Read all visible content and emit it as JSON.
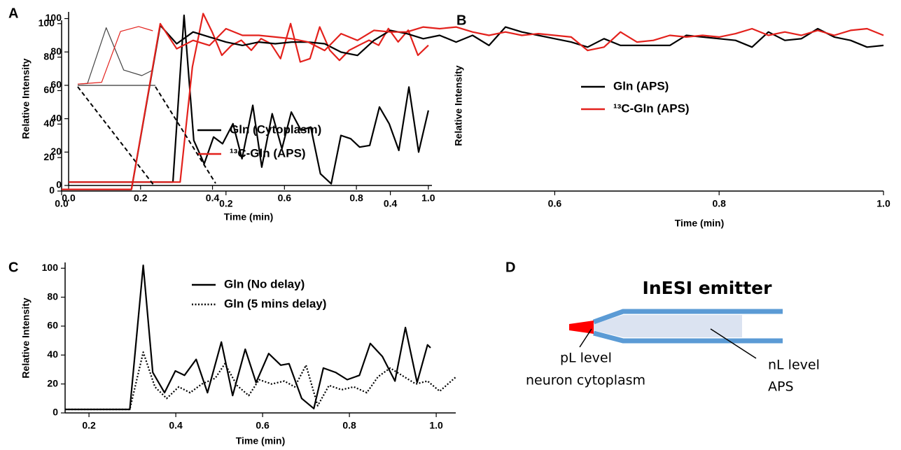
{
  "chart_data": [
    {
      "type": "line",
      "panel": "A",
      "xlabel": "Time (min)",
      "ylabel": "Relative Intensity",
      "xlim": [
        0,
        1.01
      ],
      "ylim": [
        0,
        104
      ],
      "xticks": [
        {
          "value": 0,
          "label": "0.0"
        },
        0.2,
        0.4,
        0.6,
        0.8,
        {
          "value": 1,
          "label": "1.0"
        }
      ],
      "yticks": [
        0,
        20,
        40,
        60,
        80,
        100
      ],
      "series": [
        {
          "name": "Gln (Cytoplasm)",
          "color": "#000000",
          "x": [
            0,
            0.29,
            0.321,
            0.348,
            0.377,
            0.403,
            0.428,
            0.457,
            0.482,
            0.512,
            0.537,
            0.566,
            0.593,
            0.619,
            0.646,
            0.673,
            0.7,
            0.73,
            0.757,
            0.784,
            0.809,
            0.837,
            0.864,
            0.891,
            0.918,
            0.946,
            0.973,
            1.0
          ],
          "values": [
            2,
            2,
            102,
            27,
            13,
            29,
            25,
            37,
            16,
            48,
            11,
            43,
            22,
            44,
            33,
            35,
            7,
            1,
            30,
            28,
            23,
            24,
            47,
            37,
            21,
            59,
            20,
            45
          ]
        },
        {
          "name": "¹³C-Gln (APS)",
          "color": "#e3211c",
          "x": [
            0,
            0.31,
            0.344,
            0.374,
            0.399,
            0.426,
            0.453,
            0.48,
            0.508,
            0.535,
            0.562,
            0.589,
            0.617,
            0.644,
            0.671,
            0.698,
            0.726,
            0.753,
            0.78,
            0.807,
            0.835,
            0.862,
            0.889,
            0.916,
            0.944,
            0.971,
            1.0
          ],
          "values": [
            2,
            2,
            71,
            103,
            92,
            78,
            84,
            87,
            81,
            88,
            85,
            76,
            97,
            74,
            76,
            95,
            81,
            75,
            81,
            84,
            87,
            84,
            94,
            86,
            93,
            78,
            84
          ]
        }
      ],
      "inset": {
        "xlim": [
          0.3,
          0.42
        ],
        "ylim": [
          0,
          105
        ],
        "series": [
          {
            "color": "#444444",
            "x": [
              0.3,
              0.315,
              0.344,
              0.371,
              0.399,
              0.416
            ],
            "values": [
              2,
              3,
              94,
              25,
              16,
              25
            ]
          },
          {
            "color": "#e3211c",
            "x": [
              0.3,
              0.337,
              0.366,
              0.394,
              0.416
            ],
            "values": [
              2,
              5,
              88,
              96,
              89
            ]
          }
        ]
      }
    },
    {
      "type": "line",
      "panel": "B",
      "xlabel": "Time (min)",
      "ylabel": "Relative Intensity",
      "xlim": [
        0,
        1.0
      ],
      "ylim": [
        0,
        102
      ],
      "xticks": [
        {
          "value": 0,
          "label": "0.0"
        },
        0.2,
        0.4,
        0.6,
        0.8,
        {
          "value": 1,
          "label": "1.0"
        }
      ],
      "yticks": [
        0,
        20,
        40,
        60,
        80,
        100
      ],
      "x": [
        0,
        0.085,
        0.12,
        0.14,
        0.16,
        0.18,
        0.2,
        0.22,
        0.24,
        0.26,
        0.28,
        0.3,
        0.32,
        0.34,
        0.36,
        0.38,
        0.4,
        0.42,
        0.44,
        0.46,
        0.48,
        0.5,
        0.52,
        0.54,
        0.56,
        0.58,
        0.6,
        0.62,
        0.64,
        0.66,
        0.68,
        0.7,
        0.72,
        0.74,
        0.76,
        0.78,
        0.8,
        0.82,
        0.84,
        0.86,
        0.88,
        0.9,
        0.92,
        0.94,
        0.96,
        0.98,
        1.0
      ],
      "series": [
        {
          "name": "Gln (APS)",
          "color": "#000000",
          "values": [
            1,
            1,
            99,
            88,
            95,
            92,
            89,
            87,
            89,
            88,
            89,
            89,
            88,
            83,
            81,
            90,
            96,
            94,
            91,
            93,
            89,
            93,
            87,
            98,
            95,
            93,
            91,
            89,
            86,
            91,
            87,
            87,
            87,
            87,
            93,
            92,
            91,
            90,
            86,
            95,
            90,
            91,
            97,
            92,
            90,
            86,
            87
          ]
        },
        {
          "name": "¹³C-Gln (APS)",
          "color": "#e3211c",
          "values": [
            1,
            1,
            100,
            85,
            90,
            87,
            97,
            93,
            93,
            92,
            91,
            89,
            84,
            94,
            90,
            96,
            95,
            95,
            98,
            97,
            98,
            95,
            93,
            95,
            93,
            94,
            93,
            92,
            84,
            86,
            95,
            89,
            90,
            93,
            92,
            93,
            92,
            94,
            97,
            93,
            95,
            93,
            96,
            93,
            96,
            97,
            93
          ]
        }
      ]
    },
    {
      "type": "line",
      "panel": "C",
      "xlabel": "Time (min)",
      "ylabel": "Relative Intensity",
      "xlim": [
        0.145,
        1.045
      ],
      "ylim": [
        0,
        104
      ],
      "xticks": [
        0.2,
        0.4,
        0.6,
        0.8,
        {
          "value": 1,
          "label": "1.0"
        }
      ],
      "yticks": [
        0,
        20,
        40,
        60,
        80,
        100
      ],
      "series": [
        {
          "name": "Gln (No delay)",
          "color": "#000000",
          "dotted": false,
          "x": [
            0.145,
            0.294,
            0.325,
            0.347,
            0.374,
            0.399,
            0.42,
            0.447,
            0.473,
            0.505,
            0.531,
            0.56,
            0.585,
            0.614,
            0.642,
            0.661,
            0.69,
            0.718,
            0.74,
            0.768,
            0.795,
            0.823,
            0.848,
            0.876,
            0.905,
            0.929,
            0.956,
            0.98,
            0.987
          ],
          "values": [
            2.4,
            2.4,
            102,
            28,
            14,
            29,
            26,
            37,
            14,
            49,
            12,
            44,
            21,
            41,
            33,
            34,
            10,
            3,
            31,
            28,
            23,
            26,
            48,
            39,
            22,
            59,
            21,
            47,
            45
          ]
        },
        {
          "name": "Gln (5 mins delay)",
          "color": "#000000",
          "dotted": true,
          "x": [
            0.145,
            0.294,
            0.325,
            0.352,
            0.379,
            0.407,
            0.433,
            0.46,
            0.491,
            0.513,
            0.541,
            0.568,
            0.592,
            0.621,
            0.65,
            0.674,
            0.7,
            0.727,
            0.753,
            0.782,
            0.81,
            0.84,
            0.866,
            0.894,
            0.926,
            0.953,
            0.98,
            1.008,
            1.046
          ],
          "values": [
            2.4,
            2.4,
            42,
            18,
            10,
            18,
            14,
            20,
            24,
            34,
            19,
            12,
            23,
            20,
            22,
            18,
            33,
            5,
            19,
            16,
            18,
            14,
            25,
            31,
            25,
            20,
            22,
            15,
            25
          ]
        }
      ]
    }
  ],
  "diagram": {
    "panel": "D",
    "title": "InESI emitter",
    "tip_label": [
      "pL level",
      "neuron cytoplasm"
    ],
    "body_label": [
      "nL level",
      "APS"
    ]
  }
}
